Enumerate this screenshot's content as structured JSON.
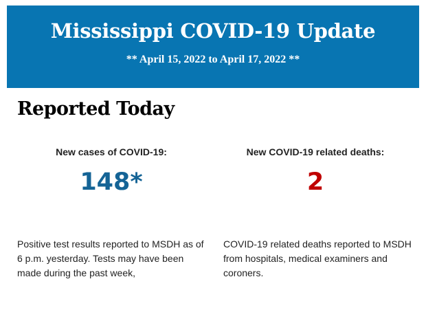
{
  "header": {
    "title": "Mississippi COVID-19 Update",
    "date_range": "** April 15, 2022 to April 17, 2022 **",
    "background_color": "#0875b2"
  },
  "section": {
    "title": "Reported Today"
  },
  "cases": {
    "label": "New cases of COVID-19:",
    "value": "148*",
    "color": "#156496",
    "description": "Positive test results reported to MSDH as of 6 p.m. yesterday. Tests may have been made during the past week,"
  },
  "deaths": {
    "label": "New COVID-19 related deaths:",
    "value": "2",
    "color": "#c00000",
    "description": "COVID-19 related deaths reported to MSDH from hospitals, medical examiners and coroners."
  }
}
